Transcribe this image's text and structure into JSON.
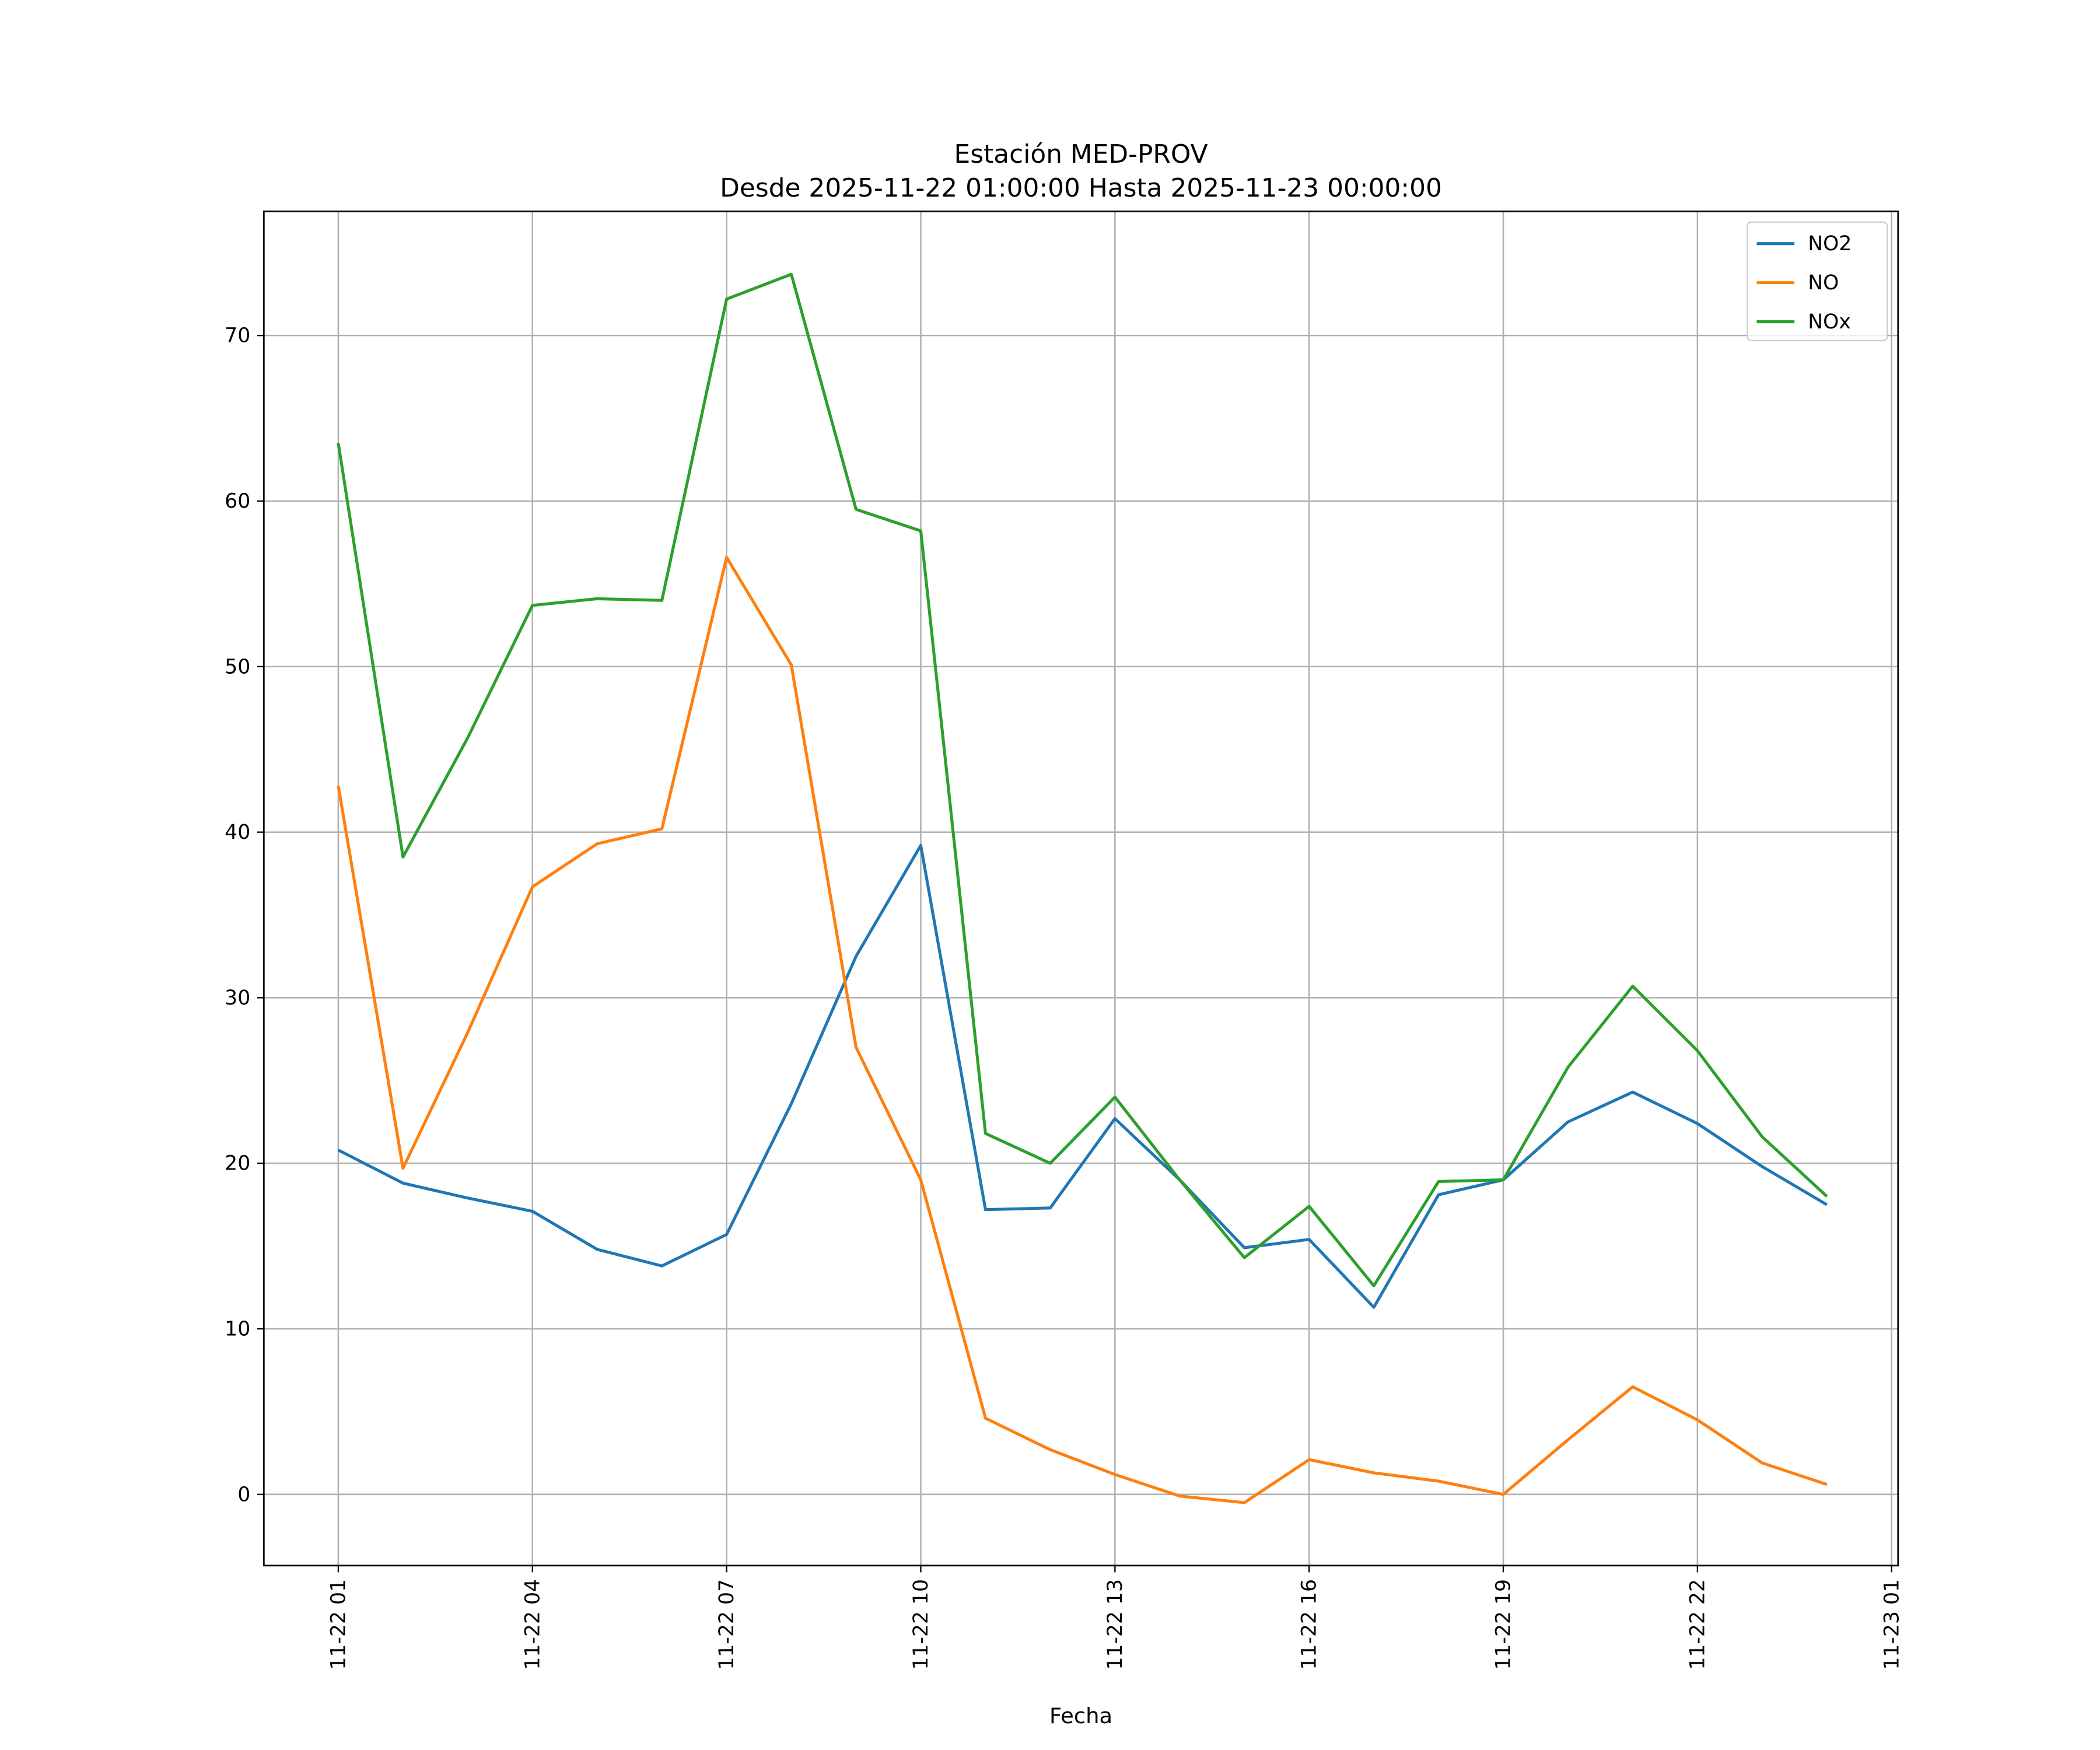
{
  "chart_data": {
    "type": "line",
    "title": "Estación MED-PROV",
    "subtitle": "Desde 2025-11-22 01:00:00 Hasta 2025-11-23 00:00:00",
    "xlabel": "Fecha",
    "ylabel": "",
    "x_hours": [
      1,
      2,
      3,
      4,
      5,
      6,
      7,
      8,
      9,
      10,
      11,
      12,
      13,
      14,
      15,
      16,
      17,
      18,
      19,
      20,
      21,
      22,
      23,
      24
    ],
    "xlim": [
      -0.15,
      25.1
    ],
    "ylim": [
      -4.3,
      77.5
    ],
    "yticks": [
      0,
      10,
      20,
      30,
      40,
      50,
      60,
      70
    ],
    "xticks": [
      {
        "hour": 1,
        "label": "11-22 01"
      },
      {
        "hour": 4,
        "label": "11-22 04"
      },
      {
        "hour": 7,
        "label": "11-22 07"
      },
      {
        "hour": 10,
        "label": "11-22 10"
      },
      {
        "hour": 13,
        "label": "11-22 13"
      },
      {
        "hour": 16,
        "label": "11-22 16"
      },
      {
        "hour": 19,
        "label": "11-22 19"
      },
      {
        "hour": 22,
        "label": "11-22 22"
      },
      {
        "hour": 25,
        "label": "11-23 01"
      }
    ],
    "grid": true,
    "legend_position": "top-right",
    "series": [
      {
        "name": "NO2",
        "color": "#1f77b4",
        "values": [
          20.8,
          18.8,
          17.9,
          17.1,
          14.8,
          13.8,
          15.7,
          23.6,
          32.5,
          39.2,
          17.2,
          17.3,
          22.7,
          19.0,
          14.9,
          15.4,
          11.3,
          18.1,
          19.0,
          22.5,
          24.3,
          22.4,
          19.8,
          17.5
        ]
      },
      {
        "name": "NO",
        "color": "#ff7f0e",
        "values": [
          42.8,
          19.7,
          27.9,
          36.7,
          39.3,
          40.2,
          56.6,
          50.1,
          27.0,
          19.0,
          4.6,
          2.7,
          1.2,
          -0.1,
          -0.5,
          2.1,
          1.3,
          0.8,
          0.0,
          3.3,
          6.5,
          4.5,
          1.9,
          0.6
        ]
      },
      {
        "name": "NOx",
        "color": "#2ca02c",
        "values": [
          63.5,
          38.5,
          45.7,
          53.7,
          54.1,
          54.0,
          72.2,
          73.7,
          59.5,
          58.2,
          21.8,
          20.0,
          24.0,
          19.0,
          14.3,
          17.4,
          12.6,
          18.9,
          19.0,
          25.8,
          30.7,
          26.8,
          21.6,
          18.0
        ]
      }
    ]
  }
}
